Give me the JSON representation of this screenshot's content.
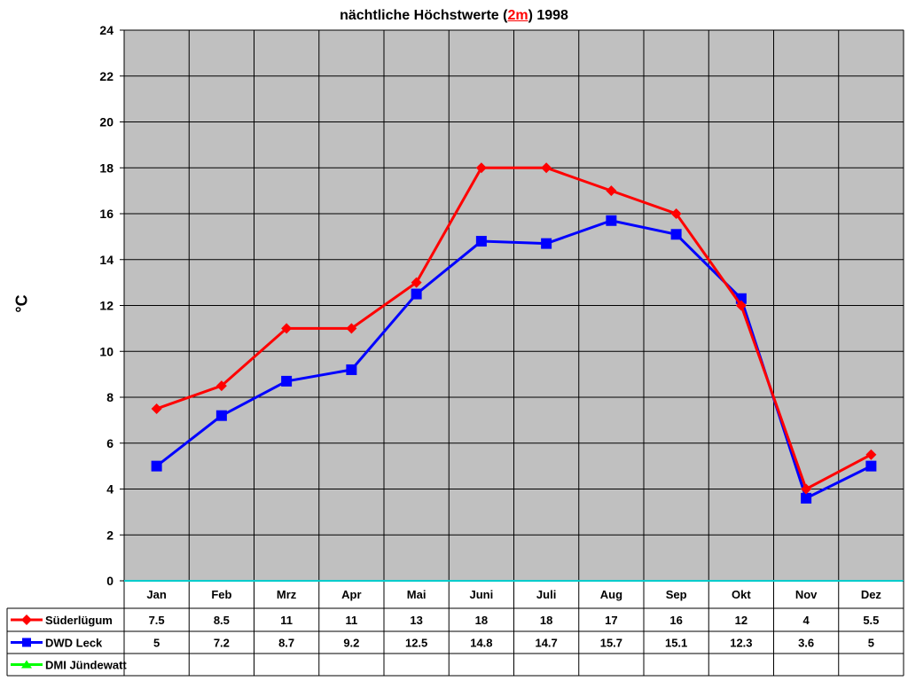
{
  "chart_data": {
    "type": "line",
    "title": "nächtliche Höchstwerte (2m) 1998",
    "title_parts": [
      "nächtliche Höchstwerte (",
      "2m",
      ") 1998"
    ],
    "xlabel": "",
    "ylabel": "°C",
    "ylim": [
      0,
      24
    ],
    "yticks": [
      0,
      2,
      4,
      6,
      8,
      10,
      12,
      14,
      16,
      18,
      20,
      22,
      24
    ],
    "grid": true,
    "legend_position": "data-table-left",
    "categories": [
      "Jan",
      "Feb",
      "Mrz",
      "Apr",
      "Mai",
      "Juni",
      "Juli",
      "Aug",
      "Sep",
      "Okt",
      "Nov",
      "Dez"
    ],
    "series": [
      {
        "name": "Süderlügum",
        "color": "#ff0000",
        "marker": "diamond",
        "values": [
          7.5,
          8.5,
          11,
          11,
          13,
          18,
          18,
          17,
          16,
          12,
          4,
          5.5
        ]
      },
      {
        "name": "DWD Leck",
        "color": "#0000ff",
        "marker": "square",
        "values": [
          5,
          7.2,
          8.7,
          9.2,
          12.5,
          14.8,
          14.7,
          15.7,
          15.1,
          12.3,
          3.6,
          5
        ]
      },
      {
        "name": "DMI Jündewatt",
        "color": "#00ff00",
        "marker": "triangle",
        "values": [
          null,
          null,
          null,
          null,
          null,
          null,
          null,
          null,
          null,
          null,
          null,
          null
        ]
      }
    ]
  },
  "style": {
    "plot_background": "#c0c0c0",
    "grid_color": "#000000",
    "zero_line_color": "#00cccc"
  }
}
